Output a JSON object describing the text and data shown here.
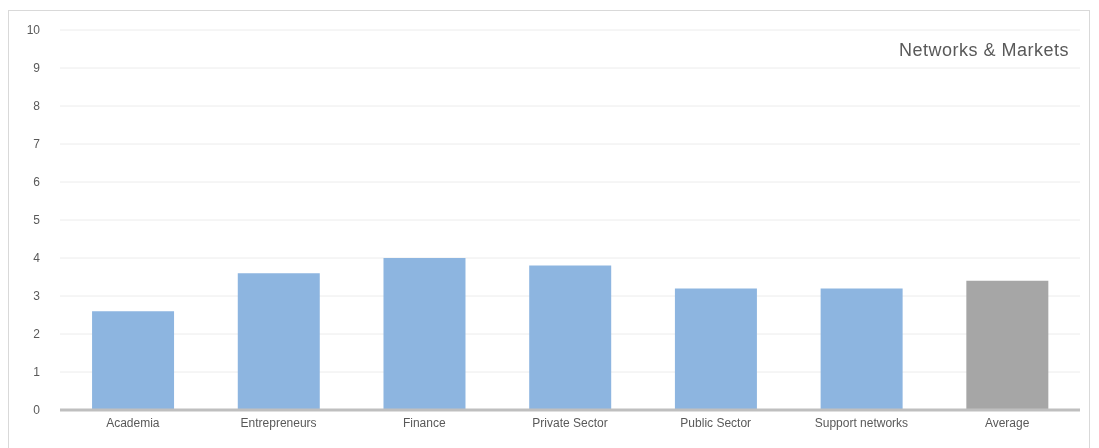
{
  "chart_data": {
    "type": "bar",
    "title": "Networks & Markets",
    "categories": [
      "Academia",
      "Entrepreneurs",
      "Finance",
      "Private Sector",
      "Public Sector",
      "Support networks",
      "Average"
    ],
    "values": [
      2.6,
      3.6,
      4.0,
      3.8,
      3.2,
      3.2,
      3.4
    ],
    "colors": [
      "#8db5e0",
      "#8db5e0",
      "#8db5e0",
      "#8db5e0",
      "#8db5e0",
      "#8db5e0",
      "#a6a6a6"
    ],
    "ylim": [
      0,
      10
    ],
    "yticks": [
      0,
      1,
      2,
      3,
      4,
      5,
      6,
      7,
      8,
      9,
      10
    ],
    "grid": "y"
  }
}
